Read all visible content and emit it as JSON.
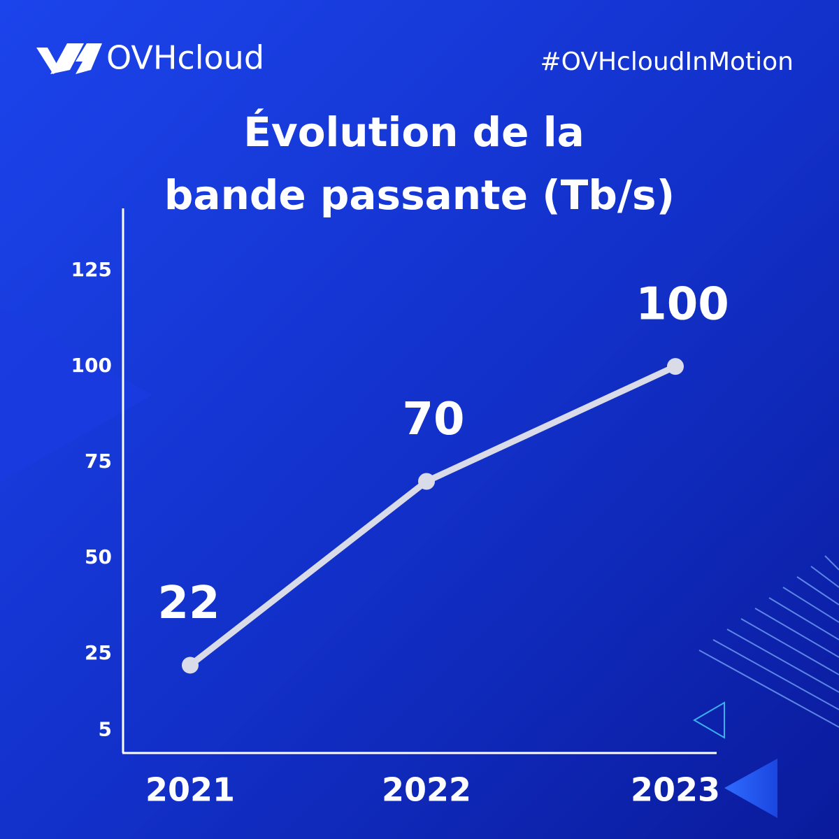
{
  "header": {
    "brand": "OVHcloud",
    "hashtag": "#OVHcloudInMotion"
  },
  "chart_data": {
    "type": "line",
    "title": [
      "Évolution de la",
      "bande passante (Tb/s)"
    ],
    "categories": [
      "2021",
      "2022",
      "2023"
    ],
    "series": [
      {
        "color": "#d9dbe8",
        "values": [
          22,
          70,
          100
        ]
      }
    ],
    "ylim": [
      0,
      140
    ],
    "yticks": [
      5,
      25,
      50,
      75,
      100,
      125
    ]
  }
}
